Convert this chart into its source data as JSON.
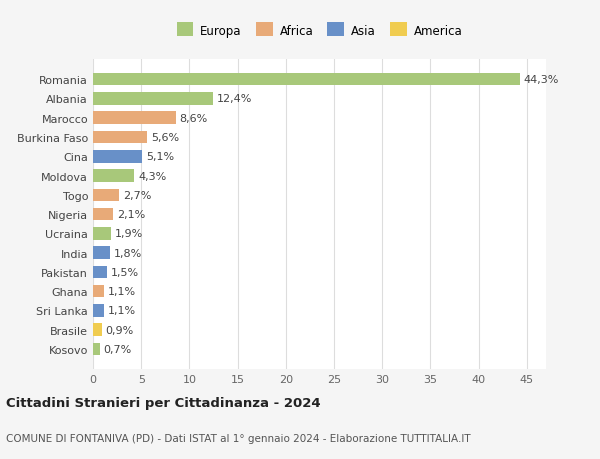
{
  "countries": [
    "Romania",
    "Albania",
    "Marocco",
    "Burkina Faso",
    "Cina",
    "Moldova",
    "Togo",
    "Nigeria",
    "Ucraina",
    "India",
    "Pakistan",
    "Ghana",
    "Sri Lanka",
    "Brasile",
    "Kosovo"
  ],
  "values": [
    44.3,
    12.4,
    8.6,
    5.6,
    5.1,
    4.3,
    2.7,
    2.1,
    1.9,
    1.8,
    1.5,
    1.1,
    1.1,
    0.9,
    0.7
  ],
  "continents": [
    "Europa",
    "Europa",
    "Africa",
    "Africa",
    "Asia",
    "Europa",
    "Africa",
    "Africa",
    "Europa",
    "Asia",
    "Asia",
    "Africa",
    "Asia",
    "America",
    "Europa"
  ],
  "colors": {
    "Europa": "#a8c87a",
    "Africa": "#e8aa78",
    "Asia": "#6890c8",
    "America": "#f0cc50"
  },
  "xlim": [
    0,
    47
  ],
  "xticks": [
    0,
    5,
    10,
    15,
    20,
    25,
    30,
    35,
    40,
    45
  ],
  "title": "Cittadini Stranieri per Cittadinanza - 2024",
  "subtitle": "COMUNE DI FONTANIVA (PD) - Dati ISTAT al 1° gennaio 2024 - Elaborazione TUTTITALIA.IT",
  "background_color": "#f5f5f5",
  "plot_background": "#ffffff",
  "grid_color": "#dddddd",
  "label_fontsize": 8,
  "value_fontsize": 8,
  "tick_fontsize": 8,
  "legend_fontsize": 8.5,
  "title_fontsize": 9.5,
  "subtitle_fontsize": 7.5,
  "bar_height": 0.65
}
